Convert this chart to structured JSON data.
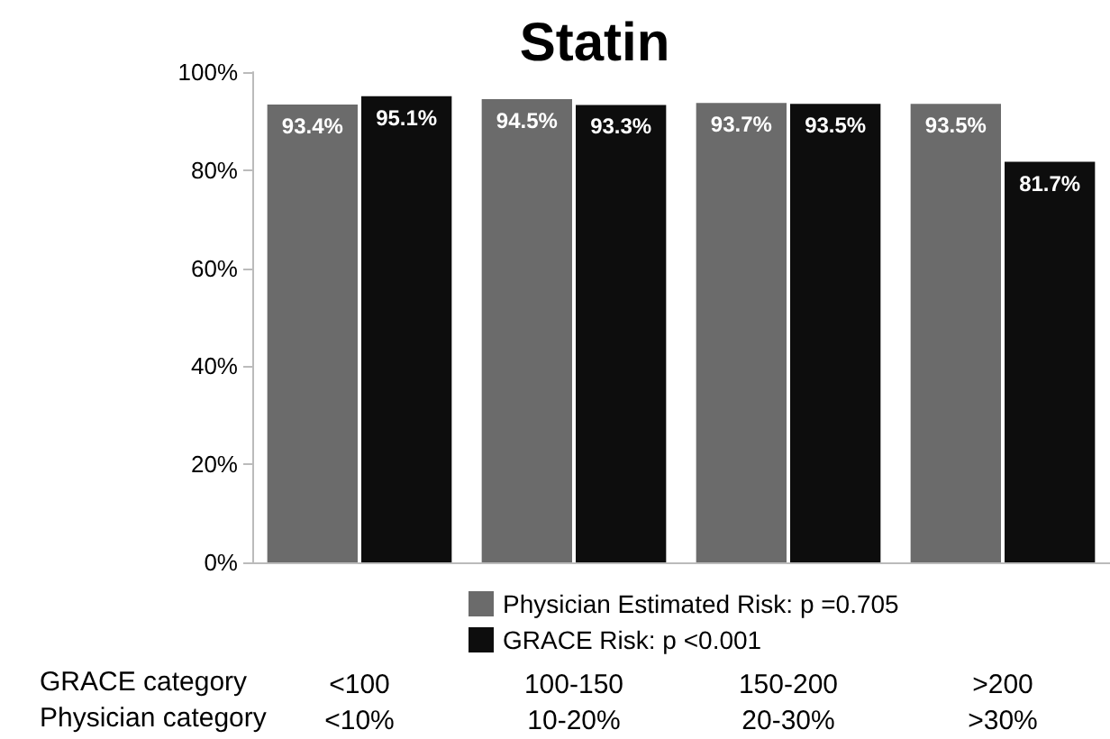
{
  "chart_data": {
    "type": "bar",
    "title": "Statin",
    "categories": [
      "<100\n<10%",
      "100-150\n10-20%",
      "150-200\n20-30%",
      ">200\n>30%"
    ],
    "series": [
      {
        "name": "Physician Estimated Risk: p =0.705",
        "color": "#6b6b6b",
        "values": [
          93.4,
          94.5,
          93.7,
          93.5
        ],
        "value_labels": [
          "93.4%",
          "94.5%",
          "93.7%",
          "93.5%"
        ]
      },
      {
        "name": "GRACE Risk: p <0.001",
        "color": "#0d0d0d",
        "values": [
          95.1,
          93.3,
          93.5,
          81.7
        ],
        "value_labels": [
          "95.1%",
          "93.3%",
          "93.5%",
          "81.7%"
        ]
      }
    ],
    "ylim": [
      0,
      100
    ],
    "yticks": [
      {
        "value": 0,
        "label": "0%"
      },
      {
        "value": 20,
        "label": "20%"
      },
      {
        "value": 40,
        "label": "40%"
      },
      {
        "value": 60,
        "label": "60%"
      },
      {
        "value": 80,
        "label": "80%"
      },
      {
        "value": 100,
        "label": "100%"
      }
    ],
    "annotations": [
      "GRACE category",
      "Physician category"
    ],
    "legend": "bottom",
    "grid": false
  }
}
